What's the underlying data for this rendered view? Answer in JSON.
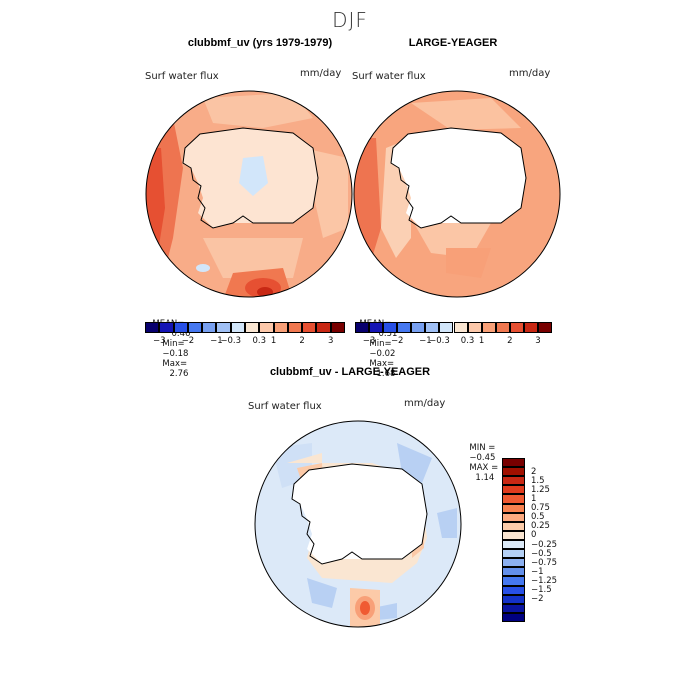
{
  "season": "DJF",
  "panels": [
    {
      "title": "clubbmf_uv (yrs 1979-1979)",
      "var_label": "Surf water flux",
      "units": "mm/day",
      "stats": {
        "mean_label": "MEAN=",
        "mean": "0.46",
        "min_label": "Min=",
        "min": "−0.18",
        "max_label": "Max=",
        "max": "2.76"
      }
    },
    {
      "title": "LARGE-YEAGER",
      "var_label": "Surf water flux",
      "units": "mm/day",
      "stats": {
        "mean_label": "MEAN=",
        "mean": "0.51",
        "min_label": "Min=",
        "min": "−0.02",
        "max_label": "Max=",
        "max": "1.68"
      }
    },
    {
      "title": "clubbmf_uv - LARGE-YEAGER",
      "var_label": "Surf water flux",
      "units": "mm/day",
      "stats": {
        "min_label": "MIN =",
        "min": "−0.45",
        "max_label": "MAX =",
        "max": "1.14"
      }
    }
  ],
  "colorbar_main": {
    "colors": [
      "#08006e",
      "#1414b4",
      "#2850e6",
      "#4678f0",
      "#78a0f0",
      "#a0c0f5",
      "#d2e6fa",
      "#fae6d2",
      "#fcc8aa",
      "#f8a078",
      "#f07850",
      "#e65032",
      "#c82814",
      "#780000"
    ],
    "tick_labels": [
      "−3",
      "−2",
      "−1",
      "−0.3",
      "0.3",
      "1",
      "2",
      "3"
    ]
  },
  "colorbar_diff": {
    "colors": [
      "#780000",
      "#a01000",
      "#c82814",
      "#e03c1e",
      "#f05a32",
      "#f88250",
      "#fcaa80",
      "#fcccaa",
      "#fae6d2",
      "#dceaf8",
      "#b4d0f5",
      "#8cb0f0",
      "#6490eb",
      "#4678f0",
      "#2850e6",
      "#1432c8",
      "#0a14a0",
      "#000080"
    ],
    "tick_labels": [
      "2",
      "1.5",
      "1.25",
      "1",
      "0.75",
      "0.5",
      "0.25",
      "0",
      "−0.25",
      "−0.5",
      "−0.75",
      "−1",
      "−1.25",
      "−1.5",
      "−2"
    ]
  }
}
